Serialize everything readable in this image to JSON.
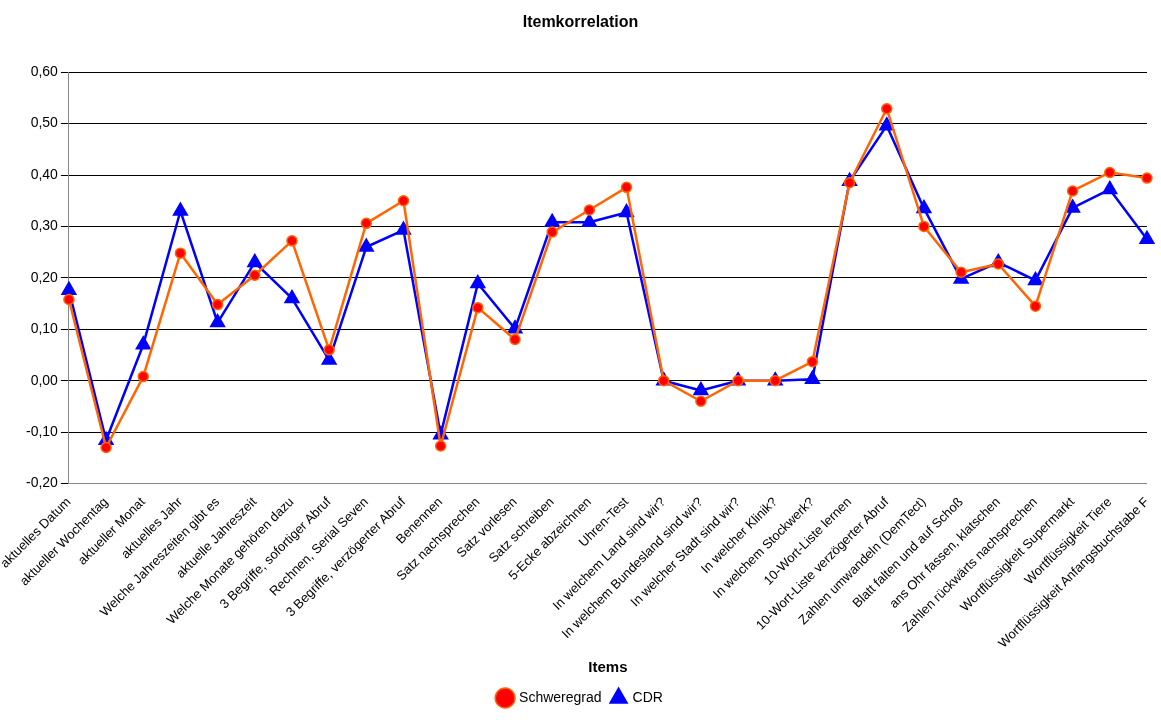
{
  "chart_data": {
    "type": "line",
    "title": "Itemkorrelation",
    "xlabel": "Items",
    "categories": [
      "aktuelles Datum",
      "aktueller Wochentag",
      "aktueller Monat",
      "aktuelles Jahr",
      "Welche Jahreszeiten gibt es",
      "aktuelle Jahreszeit",
      "Welche Monate gehören dazu",
      "3 Begriffe, sofortiger Abruf",
      "Rechnen, Serial Seven",
      "3 Begriffe, verzögerter Abruf",
      "Benennen",
      "Satz nachsprechen",
      "Satz vorlesen",
      "Satz schreiben",
      "5-Ecke abzeichnen",
      "Uhren-Test",
      "In welchem Land sind wir?",
      "In welchem Bundesland sind wir?",
      "In welcher Stadt sind wir?",
      "In welcher Klinik?",
      "In welchem Stockwerk?",
      "10-Wort-Liste lernen",
      "10-Wort-Liste verzögerter Abruf",
      "Zahlen umwandeln (DemTect)",
      "Blatt falten und auf Schoß",
      "ans Ohr fassen, klatschen",
      "Zahlen rückwärts nachsprechen",
      "Wortflüssigkeit Supermarkt",
      "Wortflüssigkeit Tiere",
      "Wortflüssigkeit Anfangsbuchstabe F"
    ],
    "series": [
      {
        "name": "Schweregrad",
        "color": "#ff6600",
        "marker": "circle",
        "values": [
          0.158,
          -0.13,
          0.008,
          0.248,
          0.148,
          0.205,
          0.272,
          0.06,
          0.306,
          0.35,
          -0.127,
          0.142,
          0.08,
          0.289,
          0.332,
          0.376,
          0,
          -0.04,
          0,
          0,
          0.037,
          0.385,
          0.529,
          0.3,
          0.211,
          0.227,
          0.145,
          0.369,
          0.405,
          0.394
        ]
      },
      {
        "name": "CDR",
        "color": "#0000ff",
        "marker": "triangle",
        "values": [
          0.176,
          -0.116,
          0.07,
          0.33,
          0.113,
          0.23,
          0.16,
          0.04,
          0.26,
          0.293,
          -0.105,
          0.189,
          0.101,
          0.308,
          0.308,
          0.327,
          0,
          -0.019,
          0,
          0,
          0.003,
          0.388,
          0.496,
          0.335,
          0.198,
          0.23,
          0.195,
          0.336,
          0.372,
          0.275
        ]
      }
    ],
    "ylim": [
      -0.2,
      0.6
    ],
    "yticks": [
      {
        "value": -0.2,
        "label": "-0,20"
      },
      {
        "value": -0.1,
        "label": "-0,10"
      },
      {
        "value": 0,
        "label": "0,00"
      },
      {
        "value": 0.1,
        "label": "0,10"
      },
      {
        "value": 0.2,
        "label": "0,20"
      },
      {
        "value": 0.3,
        "label": "0,30"
      },
      {
        "value": 0.4,
        "label": "0,40"
      },
      {
        "value": 0.5,
        "label": "0,50"
      },
      {
        "value": 0.6,
        "label": "0,60"
      }
    ],
    "grid": "y",
    "legend": "bottom",
    "line_style": "solid"
  }
}
